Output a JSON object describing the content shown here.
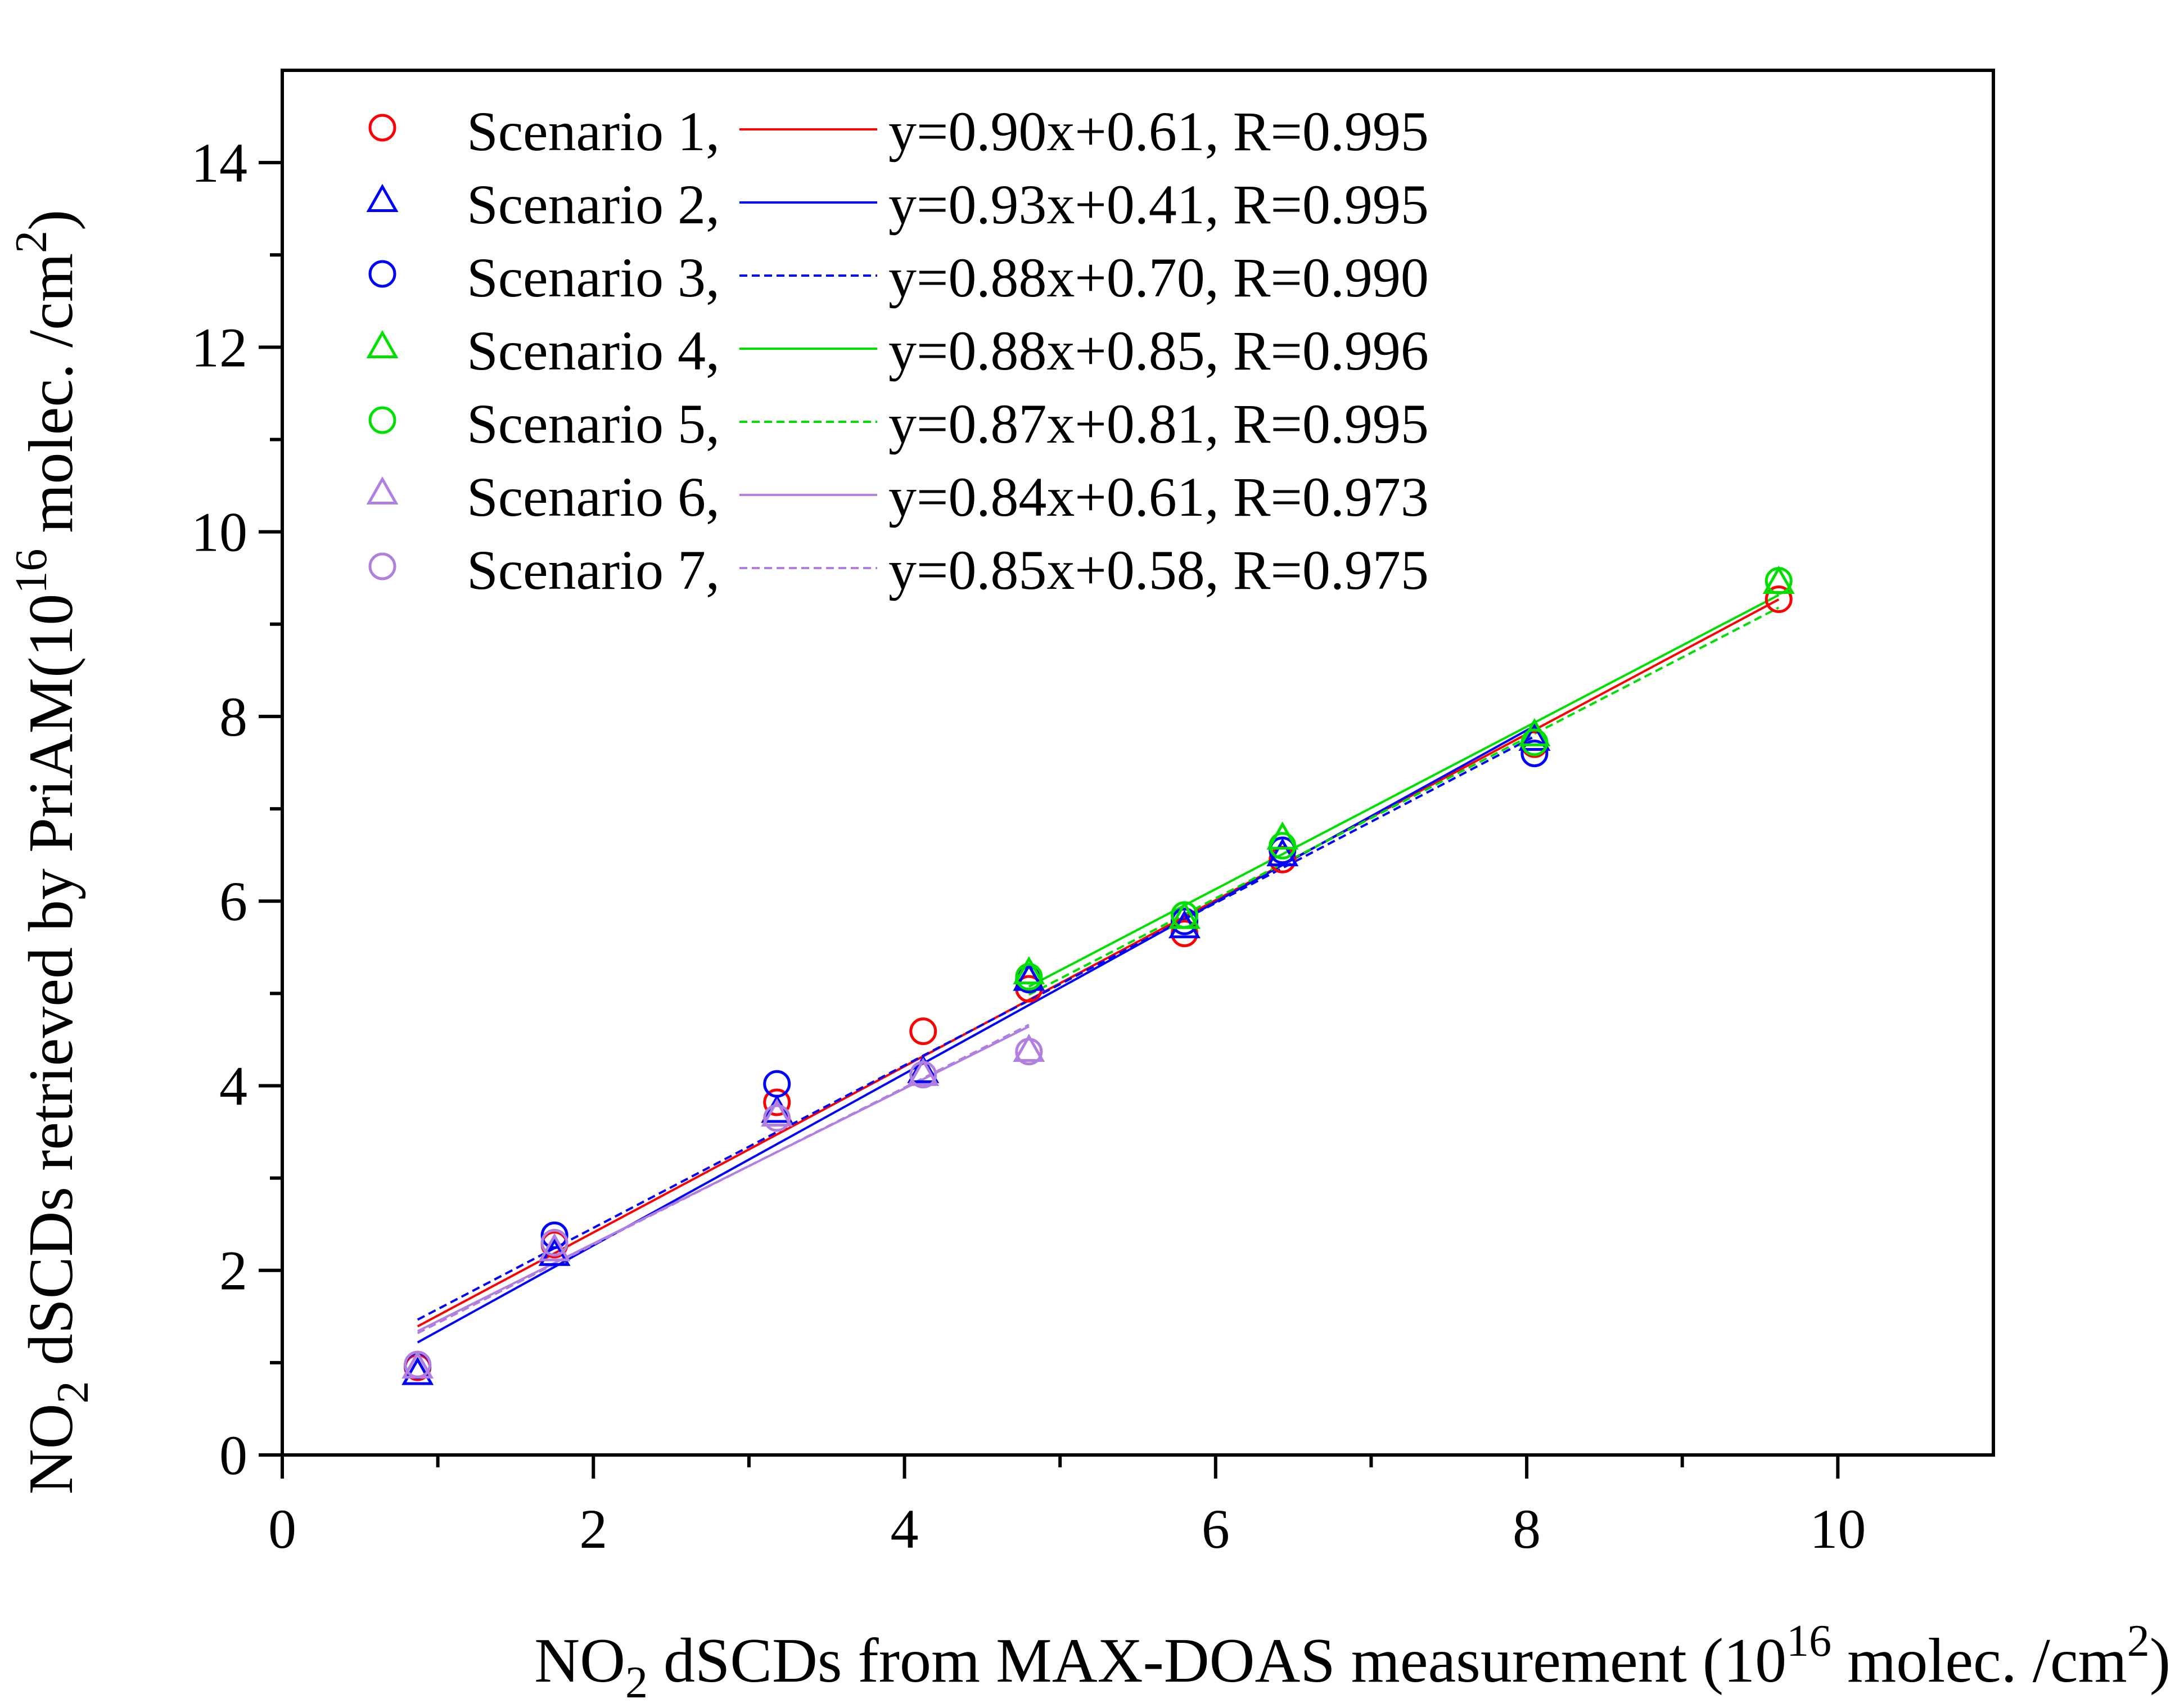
{
  "chart_data": {
    "type": "scatter",
    "title": "",
    "xlabel": {
      "pre": "NO",
      "sub": "2",
      "mid": " dSCDs from MAX-DOAS measurement (10",
      "sup": "16",
      "post": " molec. /cm",
      "sup2": "2",
      "end": ")"
    },
    "ylabel": {
      "pre": "NO",
      "sub": "2",
      "mid": " dSCDs retrieved by PriAM(10",
      "sup": "16",
      "post": " molec. /cm",
      "sup2": "2",
      "end": ")"
    },
    "xlim": [
      0,
      11
    ],
    "ylim": [
      0,
      15
    ],
    "xticks": [
      0,
      2,
      4,
      6,
      8,
      10
    ],
    "yticks": [
      0,
      2,
      4,
      6,
      8,
      10,
      12,
      14
    ],
    "xtick_labels": [
      "0",
      "2",
      "4",
      "6",
      "8",
      "10"
    ],
    "ytick_labels": [
      "0",
      "2",
      "4",
      "6",
      "8",
      "10",
      "12",
      "14"
    ],
    "legend_position": "top-left",
    "series": [
      {
        "name": "Scenario 1,",
        "fit_label": "y=0.90x+0.61, R=0.995",
        "marker": "circle",
        "color": "#ff0000",
        "line_style": "solid",
        "slope": 0.9,
        "intercept": 0.61,
        "fit_range": [
          0.87,
          9.62
        ],
        "x": [
          0.87,
          1.75,
          3.18,
          4.12,
          4.8,
          5.8,
          6.43,
          8.05,
          9.62
        ],
        "y": [
          0.95,
          2.28,
          3.82,
          4.59,
          5.05,
          5.65,
          6.45,
          7.7,
          9.27
        ]
      },
      {
        "name": "Scenario 2,",
        "fit_label": "y=0.93x+0.41, R=0.995",
        "marker": "triangle",
        "color": "#0000ff",
        "line_style": "solid",
        "slope": 0.93,
        "intercept": 0.41,
        "fit_range": [
          0.87,
          8.05
        ],
        "x": [
          0.87,
          1.75,
          3.18,
          4.12,
          4.8,
          5.8,
          6.43,
          8.05
        ],
        "y": [
          0.88,
          2.17,
          3.72,
          4.15,
          5.15,
          5.72,
          6.5,
          7.75
        ]
      },
      {
        "name": "Scenario 3,",
        "fit_label": "y=0.88x+0.70, R=0.990",
        "marker": "circle",
        "color": "#0000ff",
        "line_style": "dashed",
        "slope": 0.88,
        "intercept": 0.7,
        "fit_range": [
          0.87,
          8.05
        ],
        "x": [
          0.87,
          1.75,
          3.18,
          4.8,
          5.8,
          6.43,
          8.05
        ],
        "y": [
          0.97,
          2.38,
          4.02,
          5.15,
          5.78,
          6.55,
          7.6
        ]
      },
      {
        "name": "Scenario 4,",
        "fit_label": "y=0.88x+0.85, R=0.996",
        "marker": "triangle",
        "color": "#00e000",
        "line_style": "solid",
        "slope": 0.88,
        "intercept": 0.85,
        "fit_range": [
          4.8,
          9.62
        ],
        "x": [
          4.8,
          5.8,
          6.43,
          8.05,
          9.62
        ],
        "y": [
          5.22,
          5.82,
          6.68,
          7.8,
          9.45
        ]
      },
      {
        "name": "Scenario 5,",
        "fit_label": "y=0.87x+0.81, R=0.995",
        "marker": "circle",
        "color": "#00e000",
        "line_style": "dashed",
        "slope": 0.87,
        "intercept": 0.81,
        "fit_range": [
          4.8,
          9.62
        ],
        "x": [
          4.8,
          5.8,
          6.43,
          8.05,
          9.62
        ],
        "y": [
          5.18,
          5.85,
          6.6,
          7.72,
          9.47
        ]
      },
      {
        "name": "Scenario 6,",
        "fit_label": "y=0.84x+0.61, R=0.973",
        "marker": "triangle",
        "color": "#b07fe0",
        "line_style": "solid",
        "slope": 0.84,
        "intercept": 0.61,
        "fit_range": [
          0.87,
          4.8
        ],
        "x": [
          0.87,
          1.75,
          3.18,
          4.12,
          4.8
        ],
        "y": [
          0.95,
          2.22,
          3.68,
          4.12,
          4.38
        ]
      },
      {
        "name": "Scenario 7,",
        "fit_label": "y=0.85x+0.58, R=0.975",
        "marker": "circle",
        "color": "#b07fe0",
        "line_style": "dashed",
        "slope": 0.85,
        "intercept": 0.58,
        "fit_range": [
          0.87,
          4.8
        ],
        "x": [
          0.87,
          1.75,
          3.18,
          4.12,
          4.8
        ],
        "y": [
          0.98,
          2.3,
          3.65,
          4.12,
          4.37
        ]
      }
    ]
  }
}
